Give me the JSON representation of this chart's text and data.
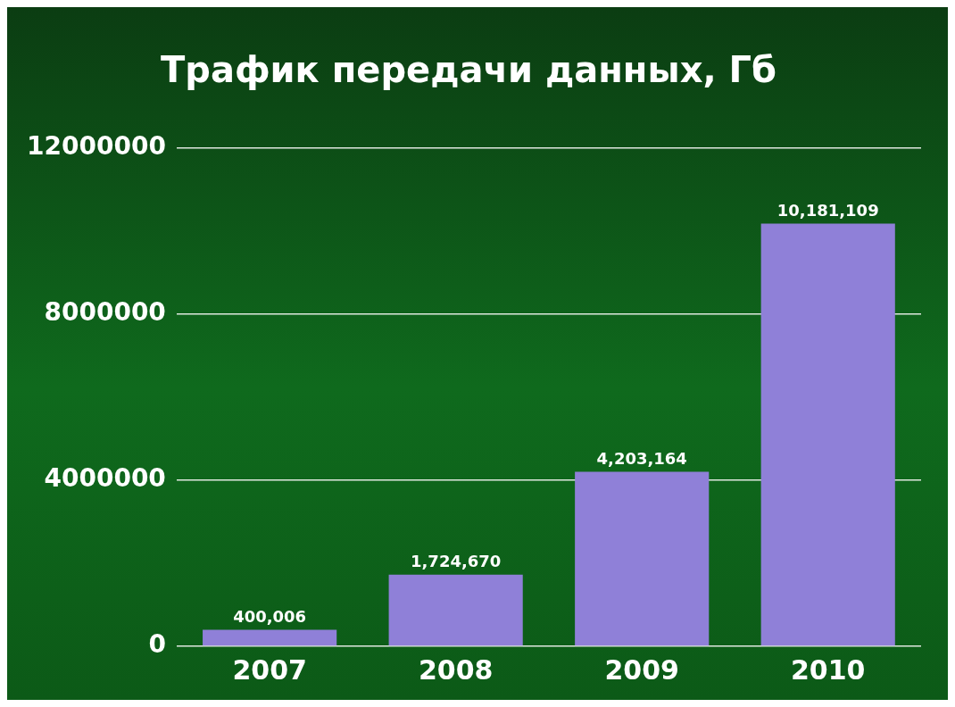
{
  "chart_data": {
    "type": "bar",
    "title": "Трафик передачи данных, Гб",
    "categories": [
      "2007",
      "2008",
      "2009",
      "2010"
    ],
    "values": [
      400006,
      1724670,
      4203164,
      10181109
    ],
    "value_labels": [
      "400,006",
      "1,724,670",
      "4,203,164",
      "10,181,109"
    ],
    "color": "#8f80d8",
    "ylim": [
      0,
      12000000
    ],
    "yticks": [
      0,
      4000000,
      8000000,
      12000000
    ],
    "grid": "y",
    "legend": false
  }
}
